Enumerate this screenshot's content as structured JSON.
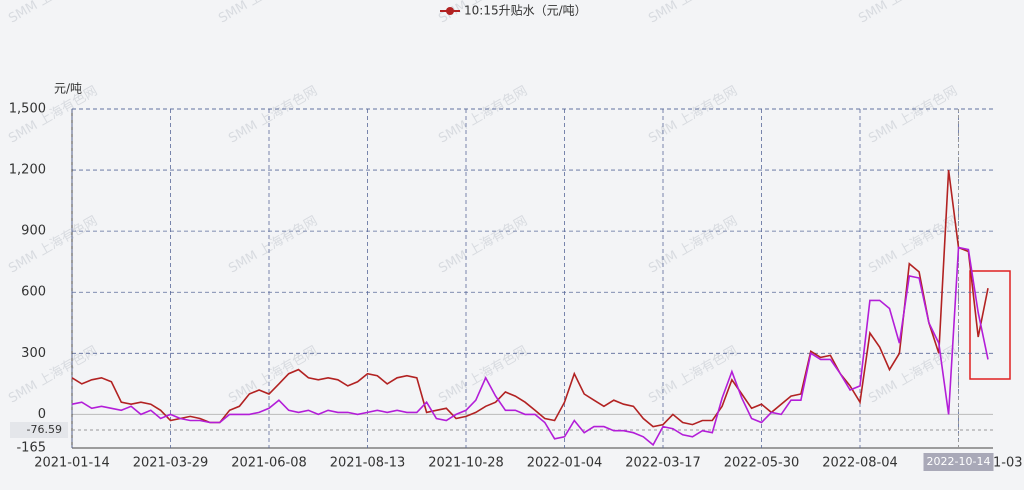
{
  "chart_data": {
    "type": "line",
    "legend": "10:15升贴水（元/吨）",
    "y_axis_label": "元/吨",
    "watermark": "SMM 上海有色网",
    "crosshair_y": -76.59,
    "categories": [
      "2021-01-14",
      null,
      null,
      null,
      null,
      null,
      null,
      null,
      null,
      null,
      "2021-03-29",
      null,
      null,
      null,
      null,
      null,
      null,
      null,
      null,
      null,
      "2021-06-08",
      null,
      null,
      null,
      null,
      null,
      null,
      null,
      null,
      null,
      "2021-08-13",
      null,
      null,
      null,
      null,
      null,
      null,
      null,
      null,
      null,
      "2021-10-28",
      null,
      null,
      null,
      null,
      null,
      null,
      null,
      null,
      null,
      "2022-01-04",
      null,
      null,
      null,
      null,
      null,
      null,
      null,
      null,
      null,
      "2022-03-17",
      null,
      null,
      null,
      null,
      null,
      null,
      null,
      null,
      null,
      "2022-05-30",
      null,
      null,
      null,
      null,
      null,
      null,
      null,
      null,
      null,
      "2022-08-04",
      null,
      null,
      null,
      null,
      null,
      null,
      null,
      null,
      null,
      "2022-10-14",
      null,
      null,
      null,
      null,
      "1-03"
    ],
    "series": [
      {
        "name": "10:15升贴水（元/吨）",
        "color": "#b22222",
        "values": [
          180,
          150,
          170,
          180,
          160,
          60,
          50,
          60,
          50,
          20,
          -30,
          -20,
          -10,
          -20,
          -40,
          -40,
          20,
          40,
          100,
          120,
          100,
          150,
          200,
          220,
          180,
          170,
          180,
          170,
          140,
          160,
          200,
          190,
          150,
          180,
          190,
          180,
          10,
          20,
          30,
          -20,
          -10,
          10,
          40,
          60,
          110,
          90,
          60,
          20,
          -20,
          -30,
          60,
          200,
          100,
          70,
          40,
          70,
          50,
          40,
          -20,
          -60,
          -50,
          0,
          -40,
          -50,
          -30,
          -30,
          40,
          170,
          100,
          30,
          50,
          10,
          50,
          90,
          100,
          310,
          280,
          290,
          200,
          140,
          60,
          400,
          330,
          220,
          300,
          740,
          700,
          450,
          300,
          1200,
          820,
          800,
          380,
          620,
          null,
          null
        ]
      },
      {
        "color": "#b31ed8",
        "values": [
          50,
          60,
          30,
          40,
          30,
          20,
          40,
          0,
          20,
          -20,
          0,
          -20,
          -30,
          -30,
          -40,
          -40,
          0,
          0,
          0,
          10,
          30,
          70,
          20,
          10,
          20,
          0,
          20,
          10,
          10,
          0,
          10,
          20,
          10,
          20,
          10,
          10,
          60,
          -20,
          -30,
          0,
          20,
          70,
          180,
          90,
          20,
          20,
          0,
          0,
          -40,
          -120,
          -110,
          -30,
          -90,
          -60,
          -60,
          -80,
          -80,
          -90,
          -110,
          -150,
          -60,
          -70,
          -100,
          -110,
          -80,
          -90,
          80,
          210,
          80,
          -20,
          -40,
          10,
          0,
          70,
          70,
          300,
          270,
          270,
          200,
          120,
          140,
          560,
          560,
          520,
          350,
          680,
          670,
          450,
          350,
          0,
          820,
          810,
          500,
          270,
          null,
          null
        ]
      }
    ],
    "ylim": [
      -165,
      1500
    ],
    "yticks": [
      -165,
      0,
      300,
      600,
      900,
      {
        "value": 1200,
        "label": "1,200"
      },
      {
        "value": 1500,
        "label": "1,500"
      }
    ],
    "grid": true
  }
}
